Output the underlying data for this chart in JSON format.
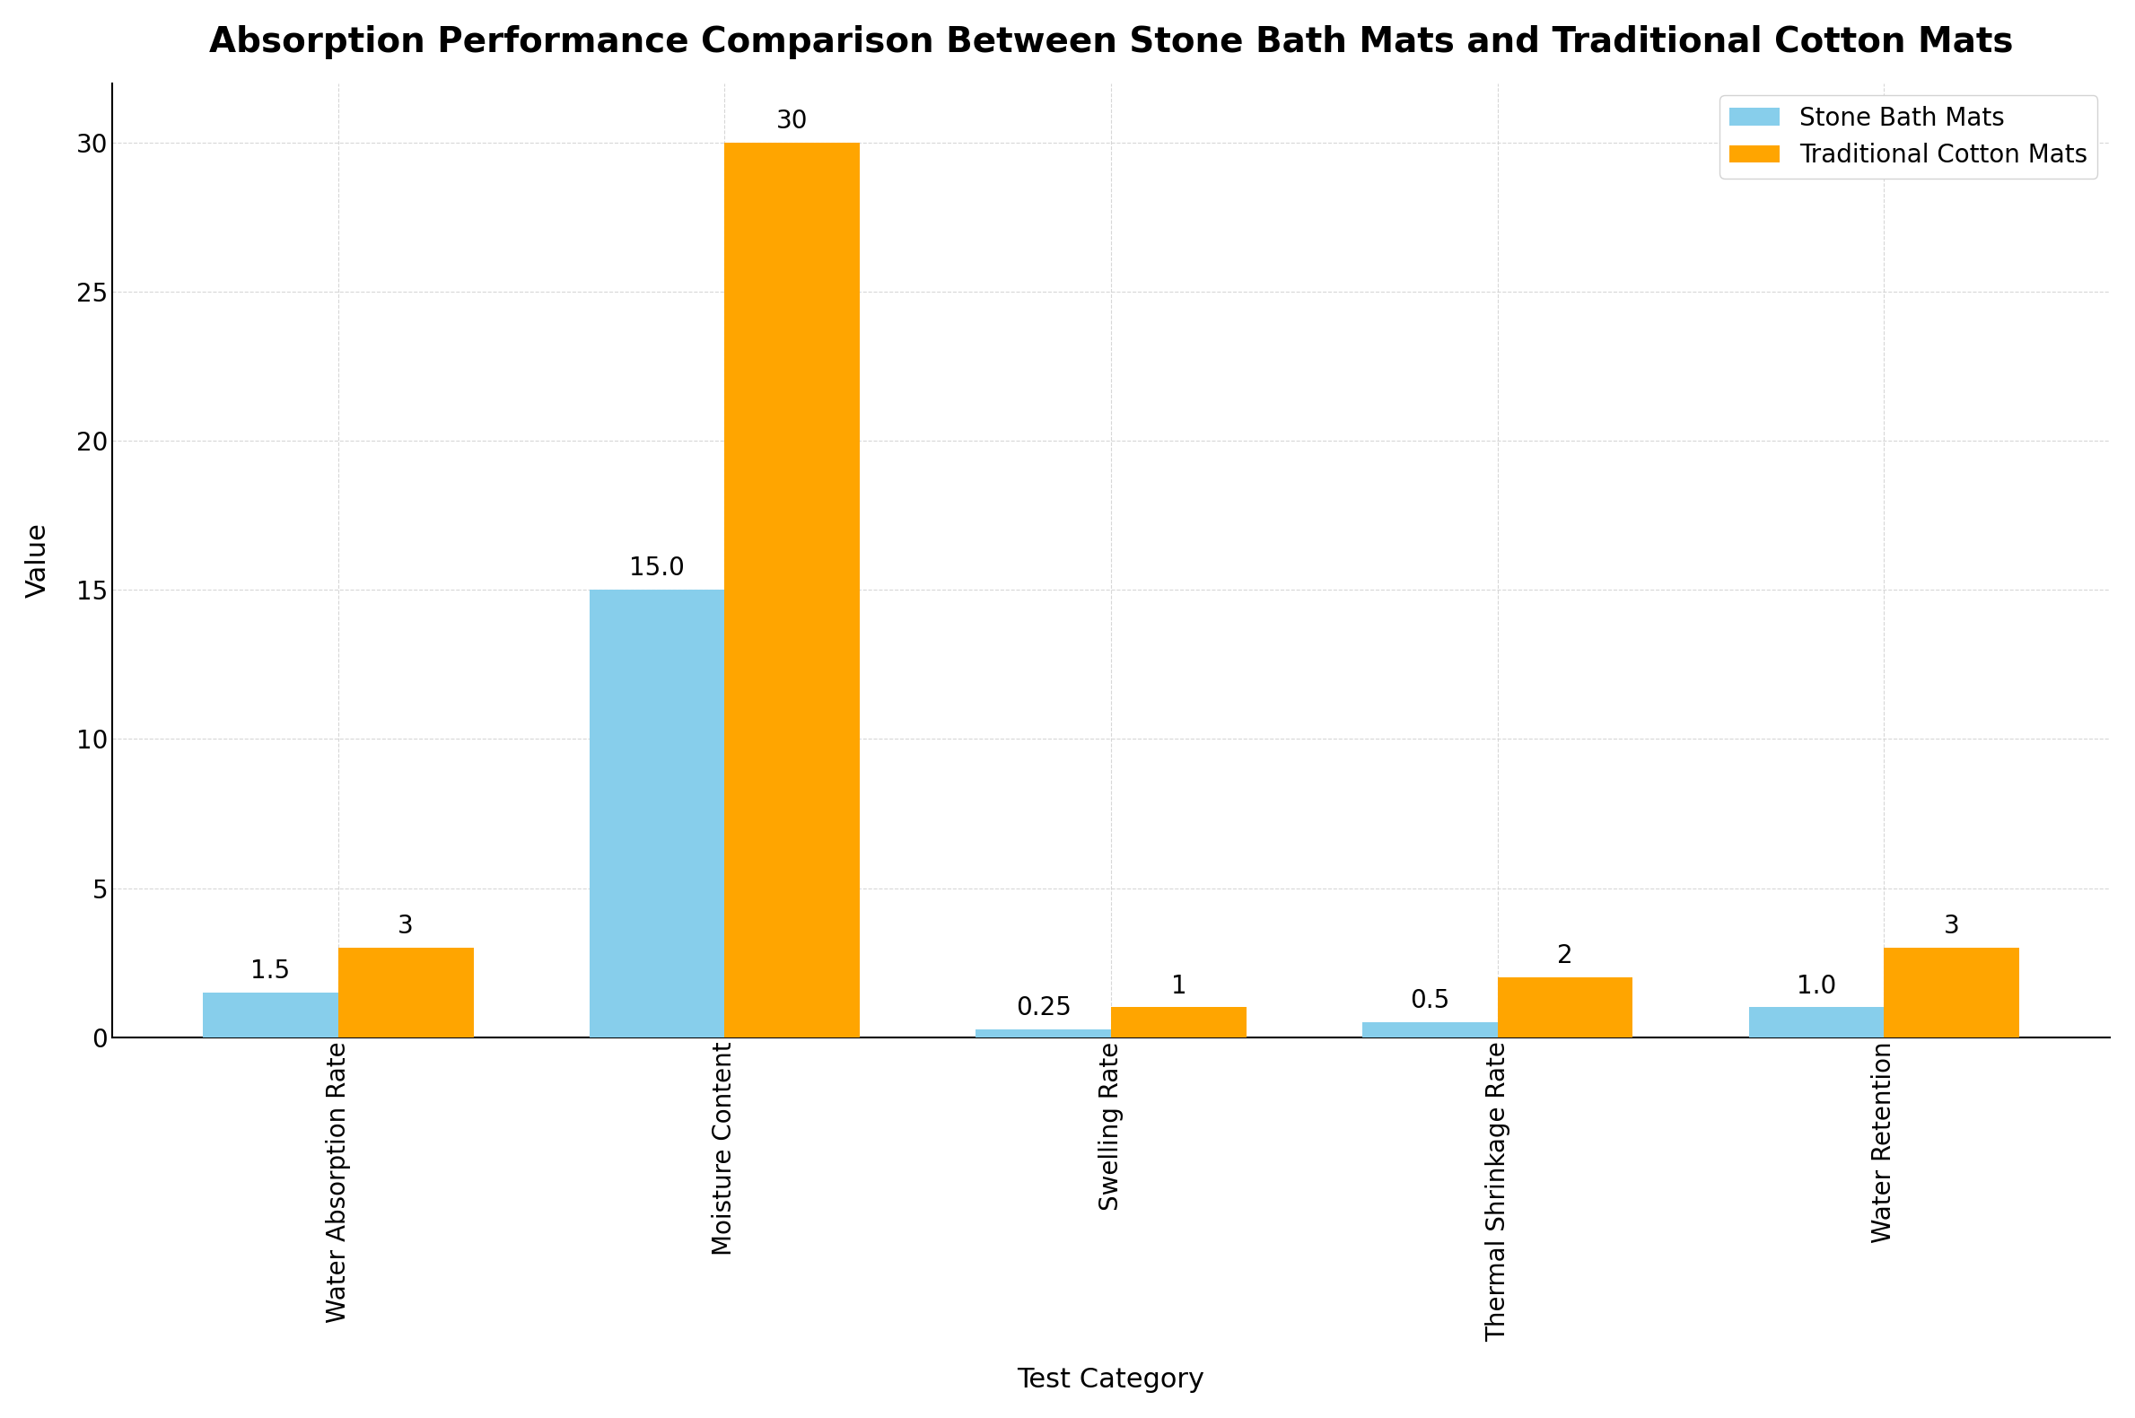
{
  "title": "Absorption Performance Comparison Between Stone Bath Mats and Traditional Cotton Mats",
  "categories": [
    "Water Absorption Rate",
    "Moisture Content",
    "Swelling Rate",
    "Thermal Shrinkage Rate",
    "Water Retention"
  ],
  "stone_values": [
    1.5,
    15.0,
    0.25,
    0.5,
    1.0
  ],
  "cotton_values": [
    3,
    30,
    1,
    2,
    3
  ],
  "stone_color": "#87CEEB",
  "cotton_color": "#FFA500",
  "xlabel": "Test Category",
  "ylabel": "Value",
  "legend_labels": [
    "Stone Bath Mats",
    "Traditional Cotton Mats"
  ],
  "ylim": [
    0,
    32
  ],
  "yticks": [
    0,
    5,
    10,
    15,
    20,
    25,
    30
  ],
  "background_color": "#FFFFFF",
  "plot_bg_color": "#FFFFFF",
  "title_fontsize": 28,
  "axis_label_fontsize": 22,
  "tick_fontsize": 20,
  "legend_fontsize": 20,
  "bar_label_fontsize": 20,
  "bar_width": 0.35
}
